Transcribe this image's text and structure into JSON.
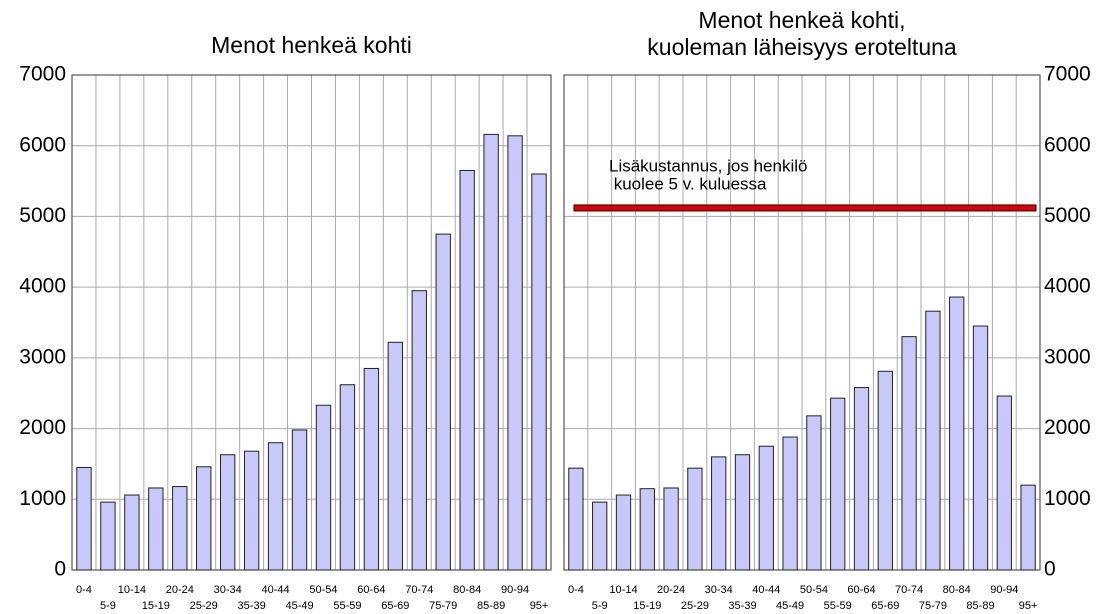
{
  "chart_data": [
    {
      "type": "bar",
      "title": "Menot henkeä kohti",
      "categories": [
        "0-4",
        "5-9",
        "10-14",
        "15-19",
        "20-24",
        "25-29",
        "30-34",
        "35-39",
        "40-44",
        "45-49",
        "50-54",
        "55-59",
        "60-64",
        "65-69",
        "70-74",
        "75-79",
        "80-84",
        "85-89",
        "90-94",
        "95+"
      ],
      "values": [
        1450,
        960,
        1060,
        1160,
        1180,
        1460,
        1630,
        1680,
        1800,
        1980,
        2330,
        2620,
        2850,
        3220,
        3950,
        4750,
        5650,
        6160,
        6140,
        5600
      ],
      "color": "#c8c8fa",
      "ylim": [
        0,
        7000
      ],
      "yticks": [
        0,
        1000,
        2000,
        3000,
        4000,
        5000,
        6000,
        7000
      ],
      "grid": true,
      "yaxis_side": "left"
    },
    {
      "type": "bar",
      "title": [
        "Menot henkeä kohti,",
        "kuoleman läheisyys eroteltuna"
      ],
      "categories": [
        "0-4",
        "5-9",
        "10-14",
        "15-19",
        "20-24",
        "25-29",
        "30-34",
        "35-39",
        "40-44",
        "45-49",
        "50-54",
        "55-59",
        "60-64",
        "65-69",
        "70-74",
        "75-79",
        "80-84",
        "85-89",
        "90-94",
        "95+"
      ],
      "values": [
        1440,
        960,
        1060,
        1150,
        1160,
        1440,
        1600,
        1630,
        1750,
        1880,
        2180,
        2430,
        2580,
        2810,
        3300,
        3660,
        3860,
        3450,
        2460,
        1200
      ],
      "color": "#c8c8fa",
      "ylim": [
        0,
        7000
      ],
      "yticks": [
        0,
        1000,
        2000,
        3000,
        4000,
        5000,
        6000,
        7000
      ],
      "grid": true,
      "yaxis_side": "right",
      "annotation": {
        "text": [
          "Lisäkustannus, jos henkilö",
          " kuolee 5 v. kuluessa"
        ],
        "value": 5120,
        "color": "#dd0000"
      }
    }
  ]
}
